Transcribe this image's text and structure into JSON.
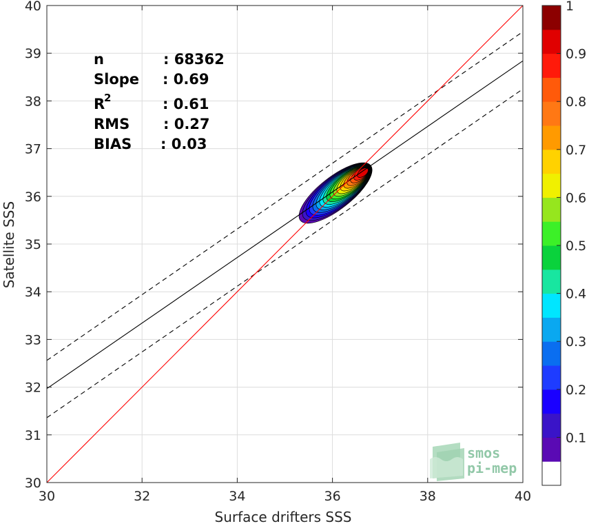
{
  "chart_data": {
    "type": "contour-scatter",
    "xlabel": "Surface drifters SSS",
    "ylabel": "Satellite SSS",
    "xlim": [
      30,
      40
    ],
    "ylim": [
      30,
      40
    ],
    "x_ticks": [
      30,
      32,
      34,
      36,
      38,
      40
    ],
    "y_ticks": [
      30,
      31,
      32,
      33,
      34,
      35,
      36,
      37,
      38,
      39,
      40
    ],
    "grid": true,
    "stats": {
      "n_label": "n",
      "n_value": ": 68362",
      "slope_label": "Slope",
      "slope_value": ": 0.69",
      "r2_label": "R",
      "r2_sup": "2",
      "r2_value": ": 0.61",
      "rms_label": "RMS",
      "rms_value": ": 0.27",
      "bias_label": "BIAS",
      "bias_value": ": 0.03"
    },
    "lines": {
      "one_to_one": {
        "color": "#ff0000",
        "points": [
          [
            30,
            30
          ],
          [
            40,
            40
          ]
        ]
      },
      "regression": {
        "color": "#000000",
        "points": [
          [
            30,
            31.97
          ],
          [
            40,
            38.84
          ]
        ]
      },
      "upper_bound": {
        "color": "#000000",
        "dashed": true,
        "points": [
          [
            30,
            32.56
          ],
          [
            40,
            39.45
          ]
        ]
      },
      "lower_bound": {
        "color": "#000000",
        "dashed": true,
        "points": [
          [
            30,
            31.36
          ],
          [
            40,
            38.25
          ]
        ]
      }
    },
    "density_peak": {
      "x": 36.65,
      "y": 36.52
    },
    "density_levels": [
      0.05,
      0.1,
      0.2,
      0.3,
      0.4,
      0.5,
      0.6,
      0.7,
      0.8,
      0.9
    ],
    "colorbar": {
      "ticks": [
        "0.1",
        "0.2",
        "0.3",
        "0.4",
        "0.5",
        "0.6",
        "0.7",
        "0.8",
        "0.9",
        "1"
      ],
      "colors": [
        "#ffffff",
        "#5a0ab4",
        "#3a14c8",
        "#1a00ff",
        "#1e3cff",
        "#0a6ef0",
        "#0aa8f0",
        "#00e6ff",
        "#18e6a0",
        "#0ad23c",
        "#3cf028",
        "#96e61e",
        "#f0f000",
        "#ffd200",
        "#ff9a00",
        "#ff7814",
        "#ff5a0a",
        "#ff1a0a",
        "#e00000",
        "#8c0000"
      ]
    }
  },
  "watermark": {
    "line1": "smos",
    "line2": "pi-mep"
  }
}
